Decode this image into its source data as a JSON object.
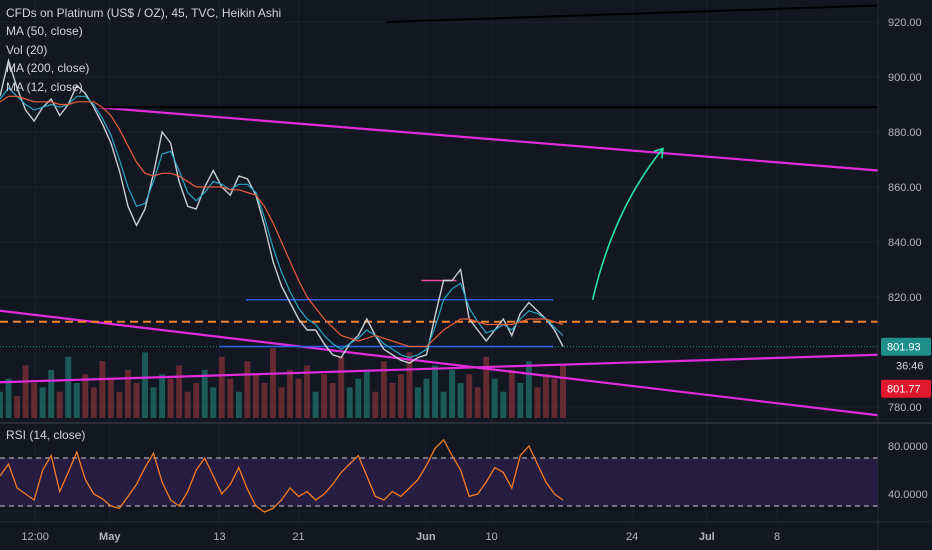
{
  "chart_data": {
    "type": "line",
    "title": "CFDs on Platinum (US$ / OZ), 45, TVC, Heikin Ashi",
    "style": "Heikin Ashi",
    "indicators": [
      "MA (50, close)",
      "Vol (20)",
      "MA (200, close)",
      "MA (12, close)"
    ],
    "x_tick_labels": [
      "12:00",
      "May",
      "13",
      "21",
      "Jun",
      "10",
      "24",
      "Jul",
      "8"
    ],
    "price_axis": {
      "tick_labels": [
        "920.00",
        "900.00",
        "880.00",
        "860.00",
        "840.00",
        "820.00",
        "780.00"
      ],
      "ylim": [
        776,
        928
      ],
      "last_price": "801.93",
      "countdown": "36:46",
      "level_label": "801.77"
    },
    "price_series": [
      {
        "name": "",
        "values": [
          893,
          906,
          896,
          888,
          884,
          889,
          892,
          886,
          890,
          897,
          894,
          889,
          883,
          876,
          866,
          853,
          846,
          852,
          865,
          880,
          876,
          862,
          853,
          852,
          860,
          866,
          860,
          857,
          864,
          863,
          857,
          846,
          833,
          824,
          818,
          812,
          808,
          808,
          803,
          799,
          798,
          803,
          806,
          812,
          806,
          801,
          799,
          797,
          796,
          798,
          799,
          813,
          826,
          826,
          830,
          812,
          808,
          804,
          808,
          812,
          806,
          814,
          818,
          815,
          812,
          808,
          802
        ]
      },
      {
        "name": "MA (12, close)",
        "values": [
          892,
          896,
          893,
          890,
          888,
          889,
          890,
          889,
          890,
          893,
          893,
          890,
          885,
          879,
          870,
          860,
          853,
          854,
          862,
          872,
          873,
          866,
          858,
          855,
          858,
          862,
          861,
          859,
          861,
          861,
          858,
          849,
          838,
          829,
          822,
          816,
          812,
          810,
          806,
          803,
          801,
          803,
          805,
          808,
          806,
          803,
          801,
          799,
          798,
          799,
          801,
          809,
          819,
          823,
          825,
          816,
          811,
          807,
          808,
          810,
          808,
          812,
          815,
          814,
          812,
          809,
          806
        ]
      },
      {
        "name": "MA (50, close)",
        "values": [
          891,
          893,
          893,
          892,
          891,
          891,
          891,
          890,
          890,
          891,
          891,
          891,
          889,
          886,
          881,
          875,
          869,
          865,
          864,
          865,
          865,
          864,
          862,
          860,
          860,
          860,
          860,
          859,
          859,
          858,
          857,
          853,
          847,
          840,
          833,
          826,
          820,
          816,
          812,
          809,
          806,
          805,
          804,
          805,
          806,
          805,
          804,
          803,
          802,
          802,
          802,
          805,
          808,
          810,
          812,
          812,
          811,
          810,
          810,
          810,
          810,
          811,
          812,
          812,
          812,
          811,
          810
        ]
      }
    ],
    "volume": [
      30,
      45,
      25,
      60,
      40,
      35,
      55,
      30,
      70,
      40,
      50,
      35,
      65,
      45,
      30,
      55,
      40,
      75,
      35,
      50,
      45,
      60,
      30,
      40,
      55,
      35,
      70,
      45,
      30,
      65,
      50,
      40,
      80,
      35,
      55,
      45,
      60,
      30,
      50,
      40,
      70,
      35,
      45,
      55,
      30,
      65,
      40,
      50,
      75,
      35,
      45,
      60,
      30,
      55,
      40,
      50,
      35,
      70,
      45,
      30,
      55,
      40,
      65,
      35,
      50,
      45,
      60
    ],
    "overlay_lines": [
      {
        "name": "upper-magenta-trendline",
        "from": [
          0.11,
          889
        ],
        "to": [
          1.0,
          866
        ]
      },
      {
        "name": "lower-magenta-trendline",
        "from": [
          0.0,
          815
        ],
        "to": [
          1.0,
          777
        ]
      },
      {
        "name": "rising-magenta-trendline",
        "from": [
          0.0,
          789
        ],
        "to": [
          1.0,
          799
        ]
      },
      {
        "name": "black-top-line",
        "from": [
          0.44,
          920
        ],
        "to": [
          1.0,
          926
        ]
      },
      {
        "name": "black-horizontal-line",
        "from": [
          0.1,
          889
        ],
        "to": [
          1.0,
          889
        ]
      },
      {
        "name": "orange-dashed-level",
        "from": [
          0.0,
          811
        ],
        "to": [
          1.0,
          811
        ]
      },
      {
        "name": "blue-range-top",
        "from": [
          0.28,
          819
        ],
        "to": [
          0.63,
          819
        ]
      },
      {
        "name": "blue-range-bottom",
        "from": [
          0.25,
          802
        ],
        "to": [
          0.63,
          802
        ]
      },
      {
        "name": "pink-level",
        "from": [
          0.48,
          826
        ],
        "to": [
          0.52,
          826
        ]
      }
    ],
    "projection_arrow": {
      "from": [
        0.675,
        819
      ],
      "to": [
        0.755,
        874
      ]
    },
    "rsi": {
      "label": "RSI (14, close)",
      "tick_labels": [
        "80.0000",
        "40.0000"
      ],
      "ylim": [
        20,
        95
      ],
      "band": [
        30,
        70
      ],
      "values": [
        55,
        65,
        45,
        40,
        35,
        60,
        72,
        42,
        58,
        75,
        52,
        40,
        36,
        30,
        28,
        38,
        48,
        62,
        74,
        50,
        35,
        30,
        42,
        60,
        70,
        55,
        40,
        48,
        62,
        44,
        30,
        25,
        28,
        35,
        45,
        38,
        42,
        35,
        40,
        48,
        58,
        65,
        72,
        55,
        38,
        35,
        42,
        38,
        45,
        52,
        64,
        78,
        85,
        72,
        60,
        38,
        40,
        50,
        62,
        58,
        45,
        72,
        80,
        65,
        50,
        40,
        35
      ]
    }
  },
  "colors": {
    "background": "#131722",
    "price": "#c9cfd6",
    "ma12": "#26a8c4",
    "ma50": "#e85d3c",
    "magenta": "#e12bdd",
    "orange_dash": "#f5822a",
    "blue_line": "#2d5bff",
    "pink_level": "#e64ca0",
    "arrow": "#29e3a5",
    "rsi_line": "#f57c20",
    "rsi_band": "#2b1f45",
    "rsi_dash": "#c8c8c8",
    "volume_up": "#1f6b68",
    "volume_down": "#7a2e36",
    "last_price_bg": "#1e8f89",
    "level_bg": "#e0182d"
  }
}
